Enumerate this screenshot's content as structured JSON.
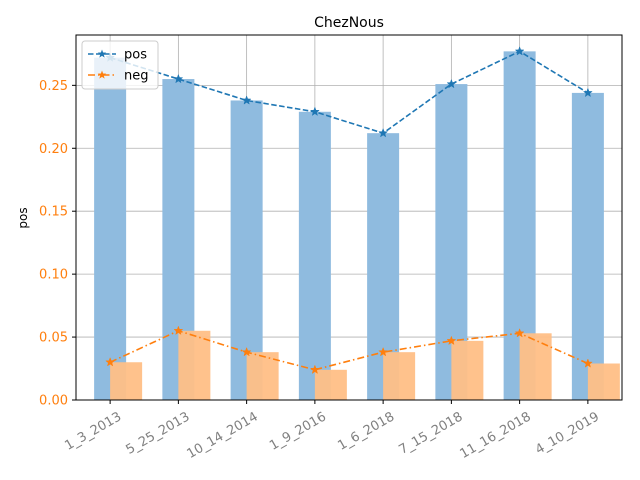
{
  "chart_data": {
    "type": "bar",
    "title": "ChezNous",
    "xlabel": "",
    "ylabel": "pos",
    "categories": [
      "1_3_2013",
      "5_25_2013",
      "10_14_2014",
      "1_9_2016",
      "1_6_2018",
      "7_15_2018",
      "11_16_2018",
      "4_10_2019"
    ],
    "series": [
      {
        "name": "pos",
        "values": [
          0.272,
          0.255,
          0.238,
          0.229,
          0.212,
          0.251,
          0.277,
          0.244
        ],
        "bar_color": "#8fbbdf",
        "line_color": "#1f77b4",
        "line_style": "dashed",
        "marker": "star"
      },
      {
        "name": "neg",
        "values": [
          0.03,
          0.055,
          0.038,
          0.024,
          0.038,
          0.047,
          0.053,
          0.029
        ],
        "bar_color": "#ffbf86",
        "line_color": "#ff7f0e",
        "line_style": "dashdot",
        "marker": "star"
      }
    ],
    "ylim": [
      0,
      0.29
    ],
    "yticks": [
      0.0,
      0.05,
      0.1,
      0.15,
      0.2,
      0.25
    ],
    "ytick_labels": [
      "0.00",
      "0.05",
      "0.10",
      "0.15",
      "0.20",
      "0.25"
    ],
    "ytick_label_color": "#ff7f0e",
    "grid": true,
    "legend_position": "top-left"
  }
}
